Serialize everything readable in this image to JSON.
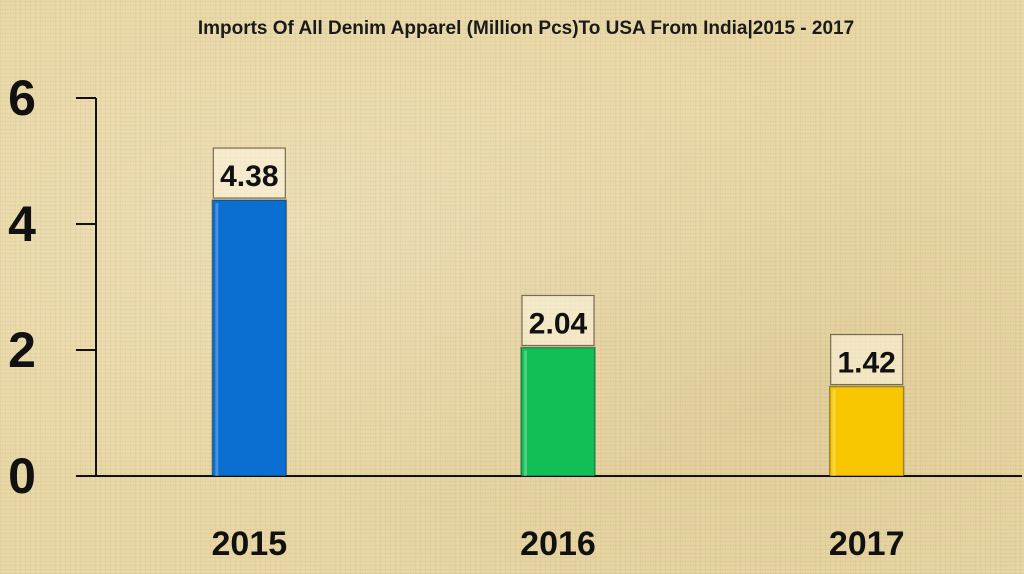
{
  "chart_data": {
    "type": "bar",
    "title": "Imports Of All Denim Apparel (Million Pcs)To USA From India|2015 - 2017",
    "xlabel": "",
    "ylabel": "",
    "categories": [
      "2015",
      "2016",
      "2017"
    ],
    "values": [
      4.38,
      2.04,
      1.42
    ],
    "data_labels": [
      "4.38",
      "2.04",
      "1.42"
    ],
    "bar_colors": [
      "#0a6fd1",
      "#10bf55",
      "#f7c600"
    ],
    "yticks": [
      0,
      2,
      4,
      6
    ],
    "ytick_labels": [
      "0",
      "2",
      "4",
      "6"
    ],
    "ylim": [
      0,
      6
    ],
    "grid": false,
    "legend": "none"
  }
}
